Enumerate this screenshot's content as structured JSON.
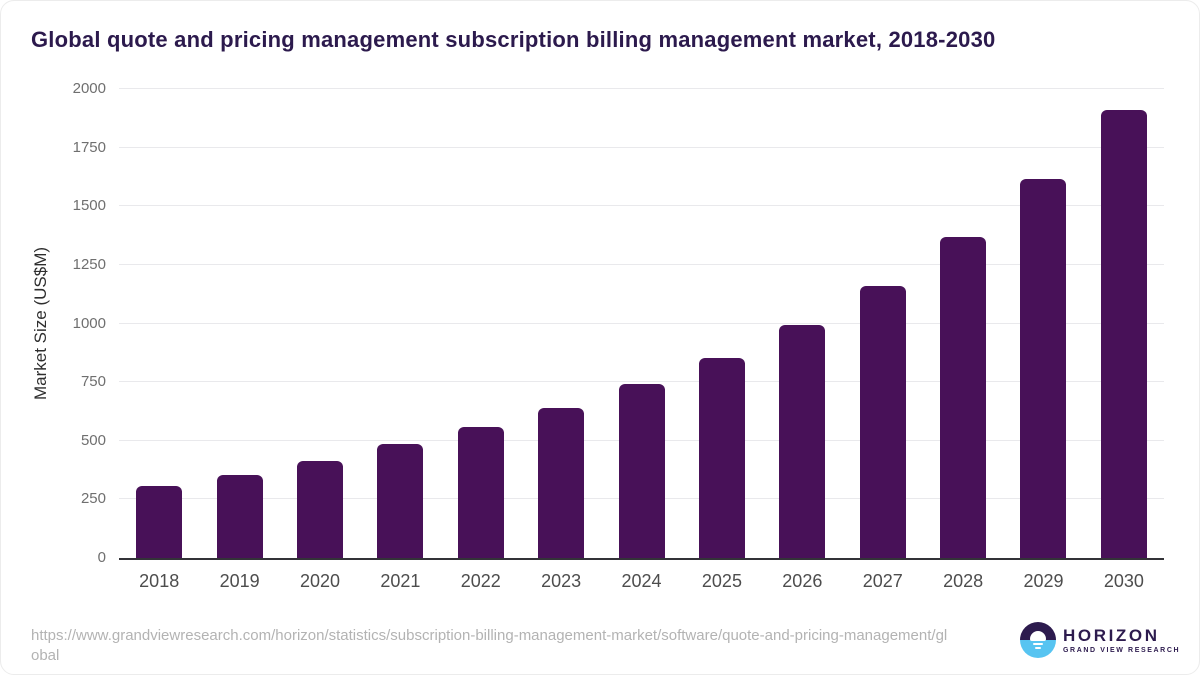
{
  "title": "Global quote and pricing management subscription billing management market, 2018-2030",
  "chart_data": {
    "type": "bar",
    "title": "Global quote and pricing management subscription billing management market, 2018-2030",
    "categories": [
      "2018",
      "2019",
      "2020",
      "2021",
      "2022",
      "2023",
      "2024",
      "2025",
      "2026",
      "2027",
      "2028",
      "2029",
      "2030"
    ],
    "values": [
      305,
      352,
      412,
      486,
      558,
      640,
      740,
      855,
      993,
      1160,
      1370,
      1615,
      1910
    ],
    "xlabel": "",
    "ylabel": "Market Size (US$M)",
    "ylim": [
      0,
      2000
    ],
    "yticks": [
      0,
      250,
      500,
      750,
      1000,
      1250,
      1500,
      1750,
      2000
    ],
    "grid": true,
    "legend": "none",
    "bar_color": "#481158"
  },
  "footer": {
    "source_url": "https://www.grandviewresearch.com/horizon/statistics/subscription-billing-management-market/software/quote-and-pricing-management/global"
  },
  "logo": {
    "name": "HORIZON",
    "subtitle": "GRAND VIEW RESEARCH"
  },
  "colors": {
    "bar": "#481158",
    "title_text": "#2c1a4d",
    "axis_line": "#333338",
    "gridline": "#e9e9ec",
    "tick_text": "#6f6f6f",
    "year_text": "#4d4d4d",
    "url_text": "#b3b3b3",
    "logo_purple": "#2d1b4e",
    "logo_blue": "#57c4f1"
  }
}
